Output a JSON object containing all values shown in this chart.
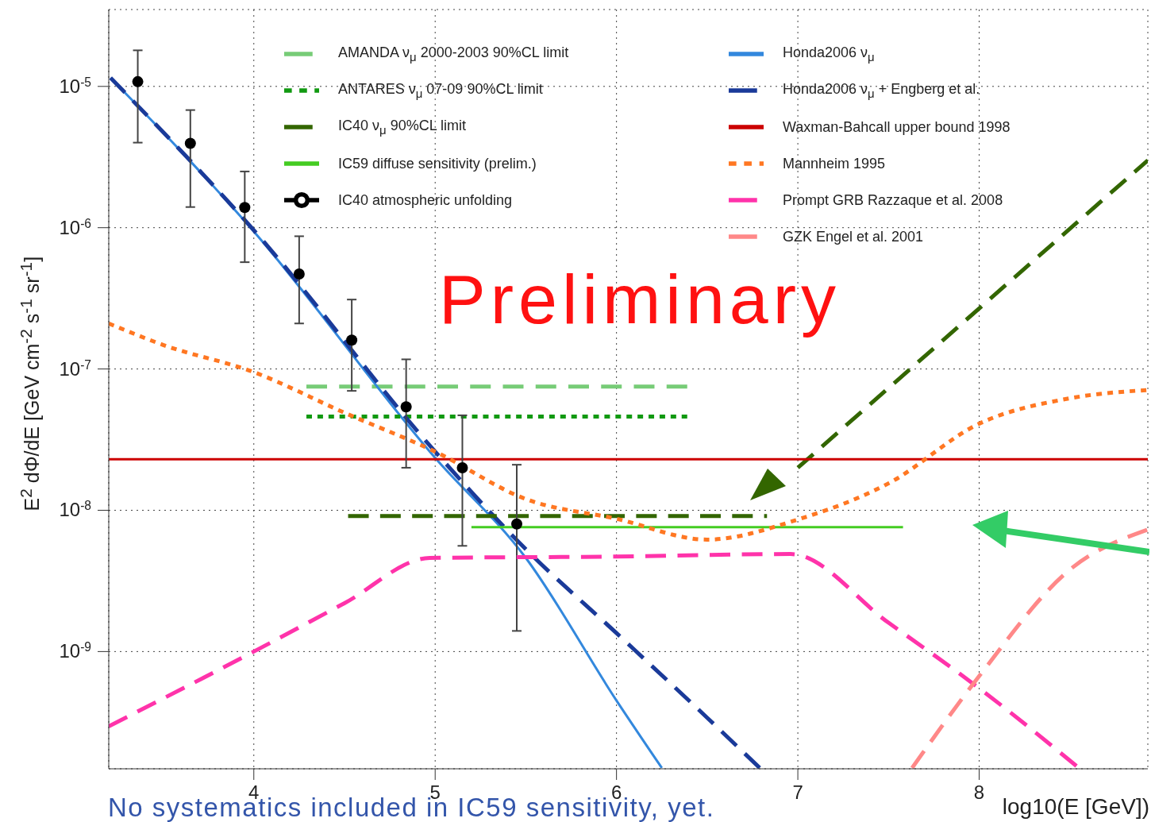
{
  "chart_data": {
    "type": "line",
    "log": "y",
    "xlim": [
      3.2,
      8.93
    ],
    "ylim": [
      1.48e-10,
      3.5e-05
    ],
    "xticks": [
      4,
      5,
      6,
      7,
      8
    ],
    "yticks": [
      {
        "value": 1e-09,
        "label": "10$^{-9}$"
      },
      {
        "value": 1e-08,
        "label": "10$^{-8}$"
      },
      {
        "value": 1e-07,
        "label": "10$^{-7}$"
      },
      {
        "value": 1e-06,
        "label": "10$^{-6}$"
      },
      {
        "value": 1e-05,
        "label": "10$^{-5}$"
      }
    ],
    "grid": true,
    "legend": "top",
    "xlabel": "log10(E [GeV])",
    "ylabel": "E$^{2}$ dΦ/dE [GeV cm$^{-2}$ s$^{-1}$ sr$^{-1}$]",
    "annotations": [
      "Preliminary",
      "No systematics included in IC59 sensitivity, yet."
    ],
    "series": [
      {
        "name": "AMANDA  ν$_{μ}$ 2000-2003 90%CL limit",
        "color": "#77cc77",
        "line_style": "dashed",
        "x": [
          4.29,
          6.39
        ],
        "values": [
          7.5e-08,
          7.5e-08
        ]
      },
      {
        "name": "ANTARES  ν$_{μ}$ 07-09 90%CL limit",
        "color": "#119911",
        "line_style": "dotted",
        "x": [
          4.29,
          6.39
        ],
        "values": [
          4.6e-08,
          4.6e-08
        ]
      },
      {
        "name": "IC40 ν$_{μ}$ 90%CL limit",
        "color": "#336600",
        "line_style": "dashed",
        "x": [
          4.52,
          6.83,
          6.9,
          7.0,
          8.93
        ],
        "values": [
          9.1e-09,
          9.1e-09,
          null,
          2e-08,
          3e-06
        ]
      },
      {
        "name": "IC59 diffuse sensitivity (prelim.)",
        "color": "#44cc22",
        "line_style": "solid",
        "x": [
          5.2,
          7.58
        ],
        "values": [
          7.6e-09,
          7.6e-09
        ]
      },
      {
        "name": "IC40 atmospheric unfolding",
        "type": "scatter",
        "color": "#000000",
        "marker": "circle",
        "x": [
          3.36,
          3.65,
          3.95,
          4.25,
          4.54,
          4.84,
          5.15,
          5.45
        ],
        "values": [
          1.08e-05,
          3.95e-06,
          1.39e-06,
          4.7e-07,
          1.6e-07,
          5.4e-08,
          2e-08,
          8e-09
        ],
        "errors": [
          [
            4e-06,
            1.8e-05
          ],
          [
            1.4e-06,
            6.8e-06
          ],
          [
            5.7e-07,
            2.5e-06
          ],
          [
            2.1e-07,
            8.7e-07
          ],
          [
            7e-08,
            3.1e-07
          ],
          [
            2e-08,
            1.17e-07
          ],
          [
            5.6e-09,
            4.7e-08
          ],
          [
            1.4e-09,
            2.1e-08
          ]
        ]
      },
      {
        "name": "Honda2006 ν$_{μ}$",
        "color": "#3388dd",
        "line_style": "solid",
        "x": [
          3.21,
          4,
          5,
          5.5,
          6,
          6.25
        ],
        "values": [
          1.15e-05,
          9.4e-07,
          2.35e-08,
          4.6e-09,
          4.5e-10,
          1.5e-10
        ]
      },
      {
        "name": "Honda2006 ν$_{μ}$ + Engberg et al.",
        "color": "#1a3a99",
        "line_style": "dashed",
        "x": [
          3.21,
          4,
          5,
          5.5,
          6,
          6.5,
          6.79
        ],
        "values": [
          1.15e-05,
          9.6e-07,
          2.6e-08,
          5.3e-09,
          1.35e-09,
          3.4e-10,
          1.5e-10
        ]
      },
      {
        "name": "Waxman-Bahcall upper bound 1998",
        "color": "#cc0000",
        "line_style": "solid",
        "x": [
          3.2,
          8.93
        ],
        "values": [
          2.3e-08,
          2.3e-08
        ]
      },
      {
        "name": "Mannheim 1995",
        "color": "#ff7722",
        "line_style": "dotted",
        "x": [
          3.2,
          3.5,
          4,
          4.5,
          5,
          5.5,
          6,
          6.5,
          7,
          7.5,
          8,
          8.5,
          8.93
        ],
        "values": [
          2.1e-07,
          1.48e-07,
          9.5e-08,
          4.9e-08,
          2.6e-08,
          1.2e-08,
          8.7e-09,
          6.2e-09,
          8.6e-09,
          1.55e-08,
          4.1e-08,
          6.2e-08,
          7.1e-08
        ]
      },
      {
        "name": "Prompt GRB Razzaque et al. 2008",
        "color": "#ff33aa",
        "line_style": "dashed",
        "x": [
          3.2,
          4,
          4.5,
          4.97,
          6,
          6.96,
          7.5,
          8,
          8.55
        ],
        "values": [
          2.96e-10,
          1e-09,
          2.2e-09,
          4.6e-09,
          4.7e-09,
          4.9e-09,
          1.6e-09,
          5.5e-10,
          1.5e-10
        ]
      },
      {
        "name": "GZK Engel et al. 2001",
        "color": "#ff8888",
        "line_style": "dashed",
        "x": [
          7.63,
          8,
          8.5,
          8.93
        ],
        "values": [
          1.5e-10,
          6.7e-10,
          3.8e-09,
          7.3e-09
        ]
      }
    ]
  }
}
